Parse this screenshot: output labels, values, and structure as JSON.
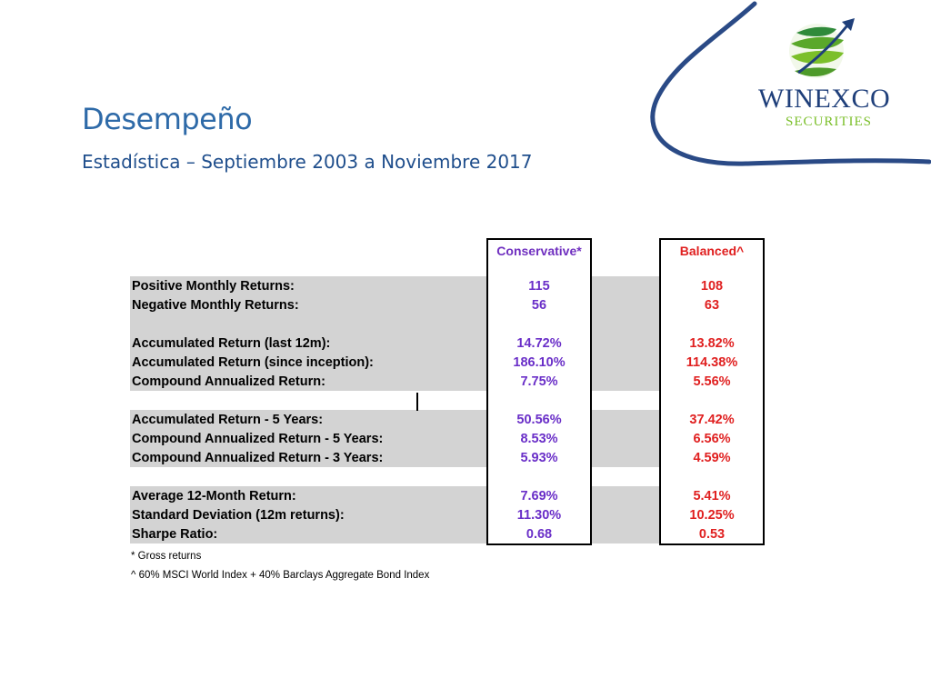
{
  "header": {
    "title": "Desempeño",
    "subtitle": "Estadística – Septiembre 2003 a Noviembre 2017"
  },
  "logo": {
    "name": "WINEXCO",
    "tagline": "SECURITIES",
    "colors": {
      "primary": "#1f3f7a",
      "accent": "#7bbf2a"
    }
  },
  "table": {
    "columns": {
      "conservative": "Conservative*",
      "balanced": "Balanced^"
    },
    "rows": [
      {
        "label": "Positive Monthly Returns:",
        "conservative": "115",
        "balanced": "108"
      },
      {
        "label": "Negative Monthly Returns:",
        "conservative": "56",
        "balanced": "63"
      },
      {
        "label": "Accumulated Return (last 12m):",
        "conservative": "14.72%",
        "balanced": "13.82%"
      },
      {
        "label": "Accumulated Return (since inception):",
        "conservative": "186.10%",
        "balanced": "114.38%"
      },
      {
        "label": "Compound Annualized Return:",
        "conservative": "7.75%",
        "balanced": "5.56%"
      },
      {
        "label": "Accumulated Return - 5 Years:",
        "conservative": "50.56%",
        "balanced": "37.42%"
      },
      {
        "label": "Compound Annualized Return - 5 Years:",
        "conservative": "8.53%",
        "balanced": "6.56%"
      },
      {
        "label": "Compound Annualized Return - 3 Years:",
        "conservative": "5.93%",
        "balanced": "4.59%"
      },
      {
        "label": "Average 12-Month Return:",
        "conservative": "7.69%",
        "balanced": "5.41%"
      },
      {
        "label": "Standard Deviation (12m returns):",
        "conservative": "11.30%",
        "balanced": "10.25%"
      },
      {
        "label": "Sharpe Ratio:",
        "conservative": "0.68",
        "balanced": "0.53"
      }
    ],
    "colors": {
      "conservative": "#6a2fc8",
      "balanced": "#e02020",
      "band": "#d3d3d3"
    }
  },
  "footnotes": {
    "gross": "* Gross returns",
    "benchmark": "^ 60% MSCI World Index + 40% Barclays Aggregate Bond Index"
  }
}
